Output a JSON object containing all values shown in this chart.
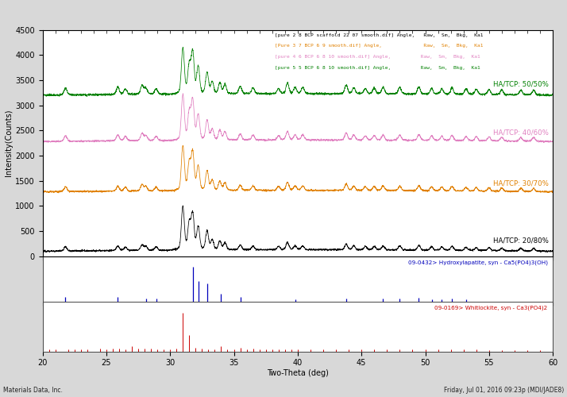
{
  "xlim": [
    20,
    60
  ],
  "ylim_main": [
    0,
    4500
  ],
  "xlabel": "Two-Theta (deg)",
  "ylabel": "Intensity(Counts)",
  "label_fontsize": 7,
  "tick_fontsize": 7,
  "background_color": "#d8d8d8",
  "plot_bg": "#ffffff",
  "series": [
    {
      "label": "HA/TCP: 20/80%",
      "color": "#000000",
      "baseline": 100
    },
    {
      "label": "HA/TCP: 30/70%",
      "color": "#e08000",
      "baseline": 1280
    },
    {
      "label": "HA/TCP: 40/60%",
      "color": "#e080c0",
      "baseline": 2280
    },
    {
      "label": "HA/TCP: 50/50%",
      "color": "#008000",
      "baseline": 3200
    }
  ],
  "legend_lines": [
    {
      "text": "[pure 2 8 BCP scaffold 22 07 smooth.dif] Angle,   Raw,  Sm,  Bkg,  Ka1",
      "color": "#000000"
    },
    {
      "text": "[Pure 3 7 BCP 6 9 smooth.dif] Angle,              Raw,  Sm,  Bkg,  Ka1",
      "color": "#e08000"
    },
    {
      "text": "[pure 4 6 BCP 6 8 10 smooth.dif] Angle,          Raw,  Sm,  Bkg,  Ka1",
      "color": "#e080c0"
    },
    {
      "text": "[pure 5 5 BCP 6 8 10 smooth.dif] Angle,          Raw,  Sm,  Bkg,  Ka1",
      "color": "#008000"
    }
  ],
  "ha_peaks": [
    21.8,
    25.9,
    28.1,
    28.9,
    31.77,
    32.2,
    32.9,
    34.0,
    35.5,
    39.8,
    43.8,
    46.7,
    48.0,
    49.5,
    50.5,
    51.3,
    52.1,
    53.2
  ],
  "ha_intensities": [
    0.14,
    0.13,
    0.08,
    0.08,
    1.0,
    0.58,
    0.52,
    0.22,
    0.13,
    0.06,
    0.09,
    0.09,
    0.09,
    0.11,
    0.07,
    0.07,
    0.09,
    0.07
  ],
  "tcp_peaks": [
    20.5,
    21.0,
    22.0,
    22.5,
    23.0,
    23.5,
    24.5,
    25.0,
    25.5,
    26.0,
    26.5,
    27.0,
    27.5,
    28.0,
    28.5,
    29.0,
    29.5,
    30.0,
    30.5,
    31.0,
    31.5,
    32.0,
    32.5,
    33.0,
    33.5,
    34.0,
    34.5,
    35.0,
    35.5,
    36.0,
    36.5,
    37.0,
    37.5,
    38.0,
    38.5,
    39.0,
    39.5,
    40.0,
    41.0,
    42.0,
    43.0,
    44.0,
    45.0,
    46.0,
    47.0,
    48.0,
    49.0,
    50.0,
    51.0,
    52.0,
    53.0,
    54.0,
    55.0,
    56.0,
    57.0,
    58.0,
    59.0
  ],
  "tcp_intensities": [
    0.05,
    0.05,
    0.06,
    0.06,
    0.05,
    0.05,
    0.07,
    0.06,
    0.07,
    0.07,
    0.06,
    0.14,
    0.08,
    0.07,
    0.08,
    0.06,
    0.06,
    0.06,
    0.07,
    1.0,
    0.42,
    0.1,
    0.07,
    0.06,
    0.06,
    0.13,
    0.06,
    0.06,
    0.09,
    0.06,
    0.07,
    0.06,
    0.06,
    0.06,
    0.06,
    0.05,
    0.05,
    0.05,
    0.05,
    0.05,
    0.05,
    0.05,
    0.05,
    0.05,
    0.05,
    0.05,
    0.05,
    0.05,
    0.05,
    0.05,
    0.05,
    0.05,
    0.04,
    0.04,
    0.04,
    0.04,
    0.04
  ],
  "ha_label": "09-0432> Hydroxylapatite, syn - Ca5(PO4)3(OH)",
  "tcp_label": "09-0169> Whitlockite, syn - Ca3(PO4)2",
  "ha_color": "#0000bb",
  "tcp_color": "#cc0000",
  "footer_left": "Materials Data, Inc.",
  "footer_right": "Friday, Jul 01, 2016 09:23p (MDI/JADE8)"
}
